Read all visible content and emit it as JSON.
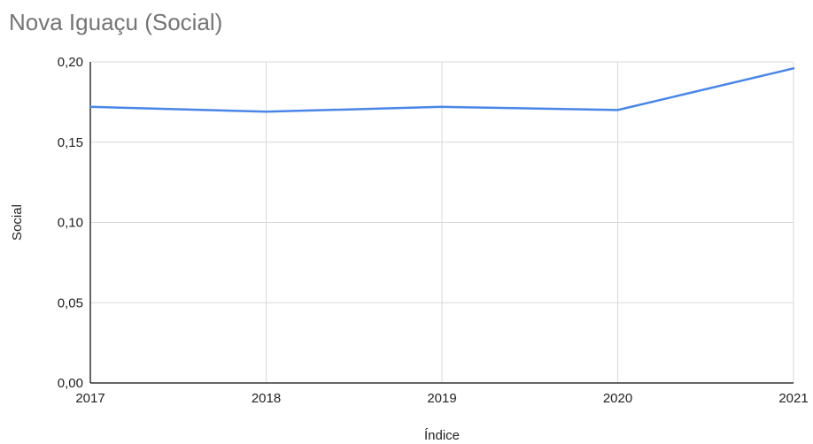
{
  "chart_data": {
    "type": "line",
    "title": "Nova Iguaçu (Social)",
    "xlabel": "Índice",
    "ylabel": "Social",
    "x": [
      "2017",
      "2018",
      "2019",
      "2020",
      "2021"
    ],
    "series": [
      {
        "values": [
          0.172,
          0.169,
          0.172,
          0.17,
          0.196
        ]
      }
    ],
    "ylim": [
      0,
      0.2
    ],
    "yticks": [
      "0,00",
      "0,05",
      "0,10",
      "0,15",
      "0,20"
    ],
    "grid": true,
    "legend": "none",
    "colors": {
      "line": "#4a86e8",
      "grid": "#d9d9d9",
      "axis": "#333333",
      "title": "#757575"
    }
  }
}
